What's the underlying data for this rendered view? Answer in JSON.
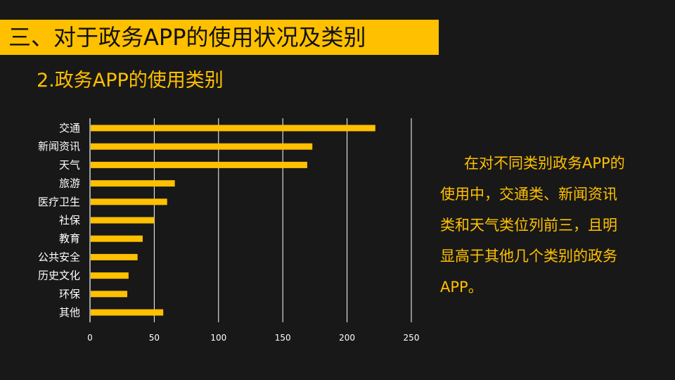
{
  "slide": {
    "title": "三、对于政务APP的使用状况及类别",
    "subtitle": "2.政务APP的使用类别",
    "description_lines": [
      "在对不同类别政务APP的",
      "使用中，交通类、新闻资讯",
      "类和天气类位列前三，且明",
      "显高于其他几个类别的政务",
      "APP。"
    ]
  },
  "colors": {
    "background": "#181818",
    "accent": "#ffc000",
    "title_text": "#111111",
    "bar": "#ffc000",
    "gridline": "#ffffff",
    "text": "#ffffff"
  },
  "chart_data": {
    "type": "bar",
    "orientation": "horizontal",
    "title": "",
    "xlabel": "",
    "ylabel": "",
    "categories": [
      "交通",
      "新闻资讯",
      "天气",
      "旅游",
      "医疗卫生",
      "社保",
      "教育",
      "公共安全",
      "历史文化",
      "环保",
      "其他"
    ],
    "values": [
      222,
      173,
      169,
      66,
      60,
      50,
      41,
      37,
      30,
      29,
      57
    ],
    "xlim": [
      0,
      250
    ],
    "xticks": [
      0,
      50,
      100,
      150,
      200,
      250
    ],
    "grid": "vertical",
    "legend": "none"
  }
}
